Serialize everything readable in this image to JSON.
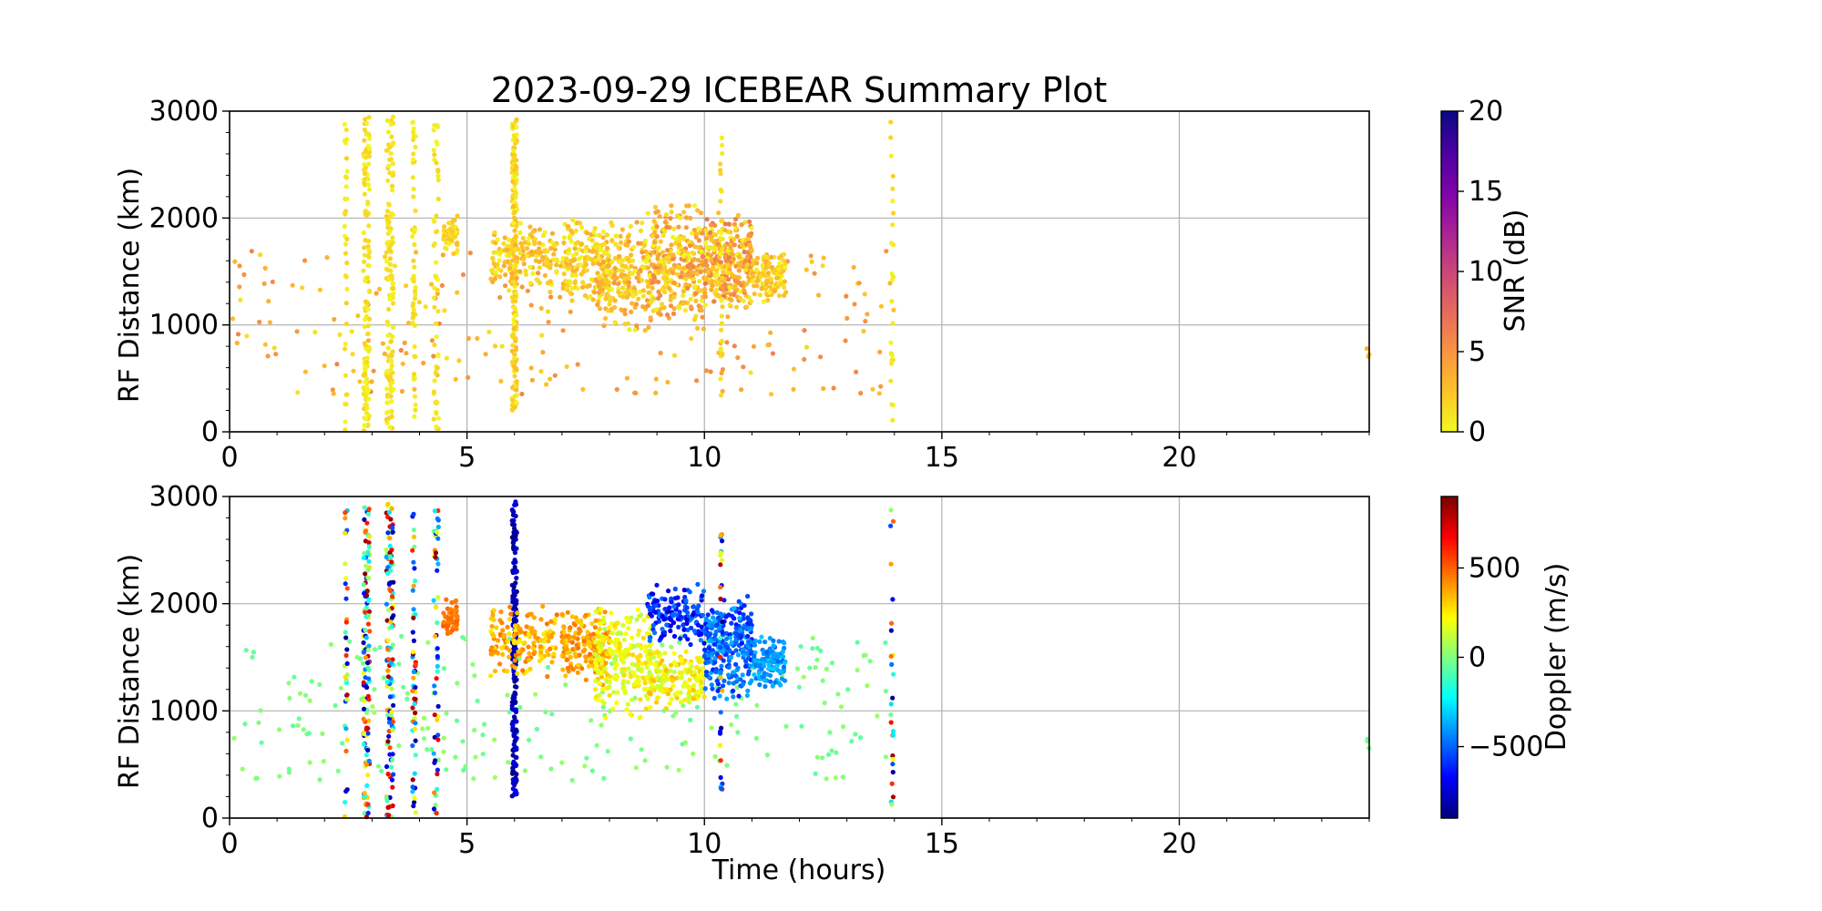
{
  "figure": {
    "title": "2023-09-29 ICEBEAR Summary Plot"
  },
  "chart_data": [
    {
      "type": "scatter",
      "panel": "top",
      "title": "2023-09-29 ICEBEAR Summary Plot",
      "xlabel": "",
      "ylabel": "RF Distance (km)",
      "xlim": [
        0,
        24
      ],
      "ylim": [
        0,
        3000
      ],
      "xticks": [
        0,
        5,
        10,
        15,
        20
      ],
      "yticks": [
        0,
        1000,
        2000,
        3000
      ],
      "grid": true,
      "colorbar": {
        "label": "SNR (dB)",
        "range": [
          0,
          20
        ],
        "ticks": [
          0,
          5,
          10,
          15,
          20
        ],
        "colormap": "plasma_r",
        "colors": [
          "#f0f921",
          "#fdc328",
          "#f89441",
          "#e56b5d",
          "#cb4778",
          "#a82296",
          "#7e03a8",
          "#4c02a1",
          "#0d0887"
        ]
      },
      "clusters": [
        {
          "x": [
            0,
            14
          ],
          "y": [
            350,
            1700
          ],
          "n": 230,
          "c": [
            1,
            6
          ],
          "kind": "scatter"
        },
        {
          "x": [
            2.42,
            2.48
          ],
          "y": [
            0,
            2900
          ],
          "n": 35,
          "c": [
            0,
            2
          ],
          "kind": "column"
        },
        {
          "x": [
            2.82,
            2.95
          ],
          "y": [
            0,
            2950
          ],
          "n": 130,
          "c": [
            0,
            2
          ],
          "kind": "column"
        },
        {
          "x": [
            3.3,
            3.45
          ],
          "y": [
            0,
            2950
          ],
          "n": 130,
          "c": [
            0,
            2
          ],
          "kind": "column"
        },
        {
          "x": [
            3.85,
            3.92
          ],
          "y": [
            0,
            2900
          ],
          "n": 55,
          "c": [
            0,
            2
          ],
          "kind": "column"
        },
        {
          "x": [
            4.3,
            4.4
          ],
          "y": [
            0,
            2900
          ],
          "n": 55,
          "c": [
            0,
            2
          ],
          "kind": "column"
        },
        {
          "x": [
            4.5,
            4.8
          ],
          "y": [
            1650,
            2050
          ],
          "n": 50,
          "c": [
            0,
            3
          ],
          "kind": "blob"
        },
        {
          "x": [
            5.95,
            6.05
          ],
          "y": [
            200,
            2950
          ],
          "n": 200,
          "c": [
            0,
            3
          ],
          "kind": "column"
        },
        {
          "x": [
            5.5,
            6.9
          ],
          "y": [
            1300,
            2000
          ],
          "n": 160,
          "c": [
            0,
            4
          ],
          "kind": "blob"
        },
        {
          "x": [
            7.0,
            8.0
          ],
          "y": [
            1200,
            2000
          ],
          "n": 170,
          "c": [
            0,
            4
          ],
          "kind": "blob"
        },
        {
          "x": [
            7.7,
            8.9
          ],
          "y": [
            900,
            2000
          ],
          "n": 230,
          "c": [
            0,
            5
          ],
          "kind": "blob"
        },
        {
          "x": [
            8.8,
            10.0
          ],
          "y": [
            1000,
            2200
          ],
          "n": 300,
          "c": [
            0,
            6
          ],
          "kind": "blob"
        },
        {
          "x": [
            10.0,
            11.0
          ],
          "y": [
            1100,
            2100
          ],
          "n": 300,
          "c": [
            0,
            7
          ],
          "kind": "blob"
        },
        {
          "x": [
            11.0,
            11.7
          ],
          "y": [
            1200,
            1700
          ],
          "n": 120,
          "c": [
            0,
            4
          ],
          "kind": "blob"
        },
        {
          "x": [
            10.33,
            10.38
          ],
          "y": [
            200,
            2800
          ],
          "n": 30,
          "c": [
            0,
            2
          ],
          "kind": "column"
        },
        {
          "x": [
            13.92,
            13.98
          ],
          "y": [
            100,
            2900
          ],
          "n": 25,
          "c": [
            0,
            2
          ],
          "kind": "column"
        },
        {
          "x": [
            23.95,
            24.0
          ],
          "y": [
            650,
            780
          ],
          "n": 3,
          "c": [
            2,
            4
          ],
          "kind": "scatter"
        }
      ]
    },
    {
      "type": "scatter",
      "panel": "bottom",
      "xlabel": "Time (hours)",
      "ylabel": "RF Distance (km)",
      "xlim": [
        0,
        24
      ],
      "ylim": [
        0,
        3000
      ],
      "xticks": [
        0,
        5,
        10,
        15,
        20
      ],
      "yticks": [
        0,
        1000,
        2000,
        3000
      ],
      "grid": true,
      "colorbar": {
        "label": "Doppler (m/s)",
        "range": [
          -900,
          900
        ],
        "ticks": [
          -500,
          0,
          500
        ],
        "tick_labels": [
          "−500",
          "0",
          "500"
        ],
        "colormap": "jet_r",
        "colors": [
          "#00007f",
          "#0000ff",
          "#007fff",
          "#00ffff",
          "#7fff7f",
          "#ffff00",
          "#ff7f00",
          "#ff0000",
          "#7f0000"
        ]
      },
      "clusters": [
        {
          "x": [
            0,
            14
          ],
          "y": [
            350,
            1700
          ],
          "n": 230,
          "c": [
            -60,
            60
          ],
          "kind": "scatter"
        },
        {
          "x": [
            2.42,
            2.48
          ],
          "y": [
            0,
            2900
          ],
          "n": 35,
          "c": [
            -900,
            900
          ],
          "kind": "column"
        },
        {
          "x": [
            2.82,
            2.95
          ],
          "y": [
            0,
            2950
          ],
          "n": 130,
          "c": [
            -900,
            900
          ],
          "kind": "column"
        },
        {
          "x": [
            3.3,
            3.45
          ],
          "y": [
            0,
            2950
          ],
          "n": 130,
          "c": [
            -900,
            900
          ],
          "kind": "column"
        },
        {
          "x": [
            3.85,
            3.92
          ],
          "y": [
            0,
            2900
          ],
          "n": 55,
          "c": [
            -900,
            900
          ],
          "kind": "column"
        },
        {
          "x": [
            4.3,
            4.4
          ],
          "y": [
            0,
            2900
          ],
          "n": 55,
          "c": [
            -900,
            900
          ],
          "kind": "column"
        },
        {
          "x": [
            4.5,
            4.8
          ],
          "y": [
            1650,
            2050
          ],
          "n": 50,
          "c": [
            420,
            520
          ],
          "kind": "blob"
        },
        {
          "x": [
            5.95,
            6.05
          ],
          "y": [
            200,
            2950
          ],
          "n": 200,
          "c": [
            -900,
            -700
          ],
          "kind": "column"
        },
        {
          "x": [
            5.5,
            6.9
          ],
          "y": [
            1300,
            2000
          ],
          "n": 160,
          "c": [
            250,
            480
          ],
          "kind": "blob"
        },
        {
          "x": [
            7.0,
            8.0
          ],
          "y": [
            1200,
            2000
          ],
          "n": 170,
          "c": [
            300,
            480
          ],
          "kind": "blob"
        },
        {
          "x": [
            7.7,
            8.9
          ],
          "y": [
            900,
            2000
          ],
          "n": 230,
          "c": [
            80,
            300
          ],
          "kind": "blob"
        },
        {
          "x": [
            8.8,
            10.0
          ],
          "y": [
            1000,
            1600
          ],
          "n": 160,
          "c": [
            100,
            350
          ],
          "kind": "blob"
        },
        {
          "x": [
            8.8,
            10.0
          ],
          "y": [
            1600,
            2200
          ],
          "n": 150,
          "c": [
            -750,
            -450
          ],
          "kind": "blob"
        },
        {
          "x": [
            10.0,
            11.0
          ],
          "y": [
            1100,
            2100
          ],
          "n": 300,
          "c": [
            -650,
            -350
          ],
          "kind": "blob"
        },
        {
          "x": [
            11.0,
            11.7
          ],
          "y": [
            1200,
            1700
          ],
          "n": 120,
          "c": [
            -500,
            -300
          ],
          "kind": "blob"
        },
        {
          "x": [
            10.33,
            10.38
          ],
          "y": [
            200,
            2800
          ],
          "n": 30,
          "c": [
            -900,
            900
          ],
          "kind": "column"
        },
        {
          "x": [
            13.92,
            13.98
          ],
          "y": [
            100,
            2900
          ],
          "n": 25,
          "c": [
            -900,
            900
          ],
          "kind": "column"
        },
        {
          "x": [
            23.95,
            24.0
          ],
          "y": [
            650,
            780
          ],
          "n": 3,
          "c": [
            -40,
            40
          ],
          "kind": "scatter"
        }
      ]
    }
  ]
}
